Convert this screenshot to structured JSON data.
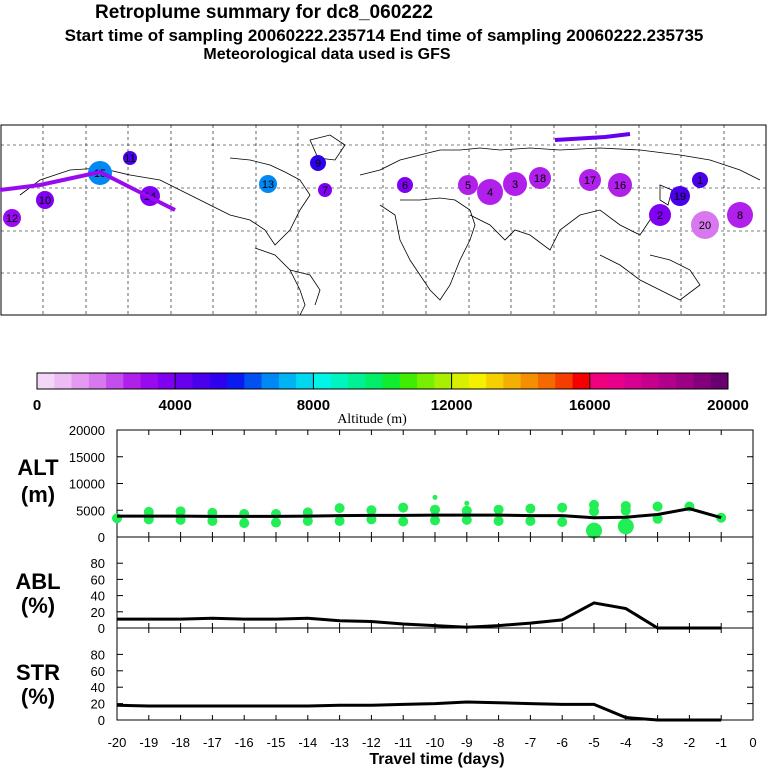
{
  "header": {
    "title": "Retroplume summary for dc8_060222",
    "sampling": "Start time of sampling 20060222.235714     End time of sampling 20060222.235735",
    "met": "Meteorological data used is GFS"
  },
  "colorbar": {
    "label": "Altitude (m)",
    "ticks": [
      "0",
      "4000",
      "8000",
      "12000",
      "16000",
      "20000"
    ],
    "colors": [
      "#f3d7f6",
      "#eebcf5",
      "#e39af0",
      "#d878ee",
      "#c44ded",
      "#b020ea",
      "#9a0af0",
      "#8000f2",
      "#6600ee",
      "#4a00ea",
      "#2f00f0",
      "#0a1af0",
      "#0050f2",
      "#0088f4",
      "#00b4f4",
      "#00d8f0",
      "#00f4e8",
      "#00f4c0",
      "#00f094",
      "#00ee68",
      "#10ec30",
      "#40ec00",
      "#78ee00",
      "#a8f000",
      "#d8f000",
      "#f4f000",
      "#f4d000",
      "#f4b000",
      "#f49000",
      "#f46a00",
      "#f43e00",
      "#f40000",
      "#f0007c",
      "#e8008c",
      "#d80090",
      "#c4008c",
      "#b0008c",
      "#9c0084",
      "#84007a",
      "#6a0070"
    ]
  },
  "map": {
    "labels": [
      "12",
      "10",
      "15",
      "14",
      "11",
      "13",
      "9",
      "7",
      "6",
      "5",
      "4",
      "3",
      "18",
      "17",
      "16",
      "19",
      "20",
      "8",
      "2",
      "1"
    ]
  },
  "chart_data": [
    {
      "type": "line",
      "panel": "ALT",
      "ylabel": "ALT\n(m)",
      "ylabel_top": "ALT",
      "ylabel_unit": "(m)",
      "ylim": [
        0,
        20000
      ],
      "yticks": [
        "0",
        "5000",
        "10000",
        "15000",
        "20000"
      ],
      "x": [
        -20,
        -19,
        -18,
        -17,
        -16,
        -15,
        -14,
        -13,
        -12,
        -11,
        -10,
        -9,
        -8,
        -7,
        -6,
        -5,
        -4,
        -3,
        -2,
        -1
      ],
      "values": [
        3900,
        3900,
        3900,
        3850,
        3850,
        3850,
        3900,
        4000,
        4050,
        4050,
        4100,
        4100,
        4100,
        4000,
        4000,
        3600,
        3700,
        4200,
        5300,
        3600
      ],
      "scatter": [
        {
          "x": -20,
          "y": 3500
        },
        {
          "x": -19,
          "y": 3300
        },
        {
          "x": -19,
          "y": 4700
        },
        {
          "x": -18,
          "y": 3200
        },
        {
          "x": -18,
          "y": 4800
        },
        {
          "x": -17,
          "y": 3000
        },
        {
          "x": -17,
          "y": 4500
        },
        {
          "x": -16,
          "y": 2600
        },
        {
          "x": -16,
          "y": 4300
        },
        {
          "x": -15,
          "y": 2700
        },
        {
          "x": -15,
          "y": 4300
        },
        {
          "x": -14,
          "y": 3000
        },
        {
          "x": -14,
          "y": 4600
        },
        {
          "x": -13,
          "y": 3000
        },
        {
          "x": -13,
          "y": 5400
        },
        {
          "x": -12,
          "y": 3300
        },
        {
          "x": -12,
          "y": 5000
        },
        {
          "x": -11,
          "y": 2900
        },
        {
          "x": -11,
          "y": 5500
        },
        {
          "x": -10,
          "y": 3100
        },
        {
          "x": -10,
          "y": 5100
        },
        {
          "x": -10,
          "y": 7400
        },
        {
          "x": -9,
          "y": 3200
        },
        {
          "x": -9,
          "y": 4900
        },
        {
          "x": -9,
          "y": 6300
        },
        {
          "x": -8,
          "y": 3000
        },
        {
          "x": -8,
          "y": 5100
        },
        {
          "x": -7,
          "y": 3000
        },
        {
          "x": -7,
          "y": 5300
        },
        {
          "x": -6,
          "y": 2800
        },
        {
          "x": -6,
          "y": 5500
        },
        {
          "x": -5,
          "y": 1200
        },
        {
          "x": -5,
          "y": 4800
        },
        {
          "x": -5,
          "y": 6000
        },
        {
          "x": -4,
          "y": 2000
        },
        {
          "x": -4,
          "y": 4900
        },
        {
          "x": -4,
          "y": 5800
        },
        {
          "x": -3,
          "y": 3400
        },
        {
          "x": -3,
          "y": 5700
        },
        {
          "x": -2,
          "y": 5700
        },
        {
          "x": -1,
          "y": 3600
        }
      ]
    },
    {
      "type": "line",
      "panel": "ABL",
      "ylabel_top": "ABL",
      "ylabel_unit": "(%)",
      "ylim": [
        0,
        100
      ],
      "yticks": [
        "0",
        "20",
        "40",
        "60",
        "80"
      ],
      "x": [
        -20,
        -19,
        -18,
        -17,
        -16,
        -15,
        -14,
        -13,
        -12,
        -11,
        -10,
        -9,
        -8,
        -7,
        -6,
        -5,
        -4,
        -3,
        -2,
        -1
      ],
      "values": [
        11,
        11,
        11,
        12,
        11,
        11,
        12,
        9,
        8,
        5,
        3,
        1,
        3,
        6,
        10,
        31,
        24,
        0,
        0,
        0
      ]
    },
    {
      "type": "line",
      "panel": "STR",
      "ylabel_top": "STR",
      "ylabel_unit": "(%)",
      "ylim": [
        0,
        100
      ],
      "yticks": [
        "0",
        "20",
        "40",
        "60",
        "80"
      ],
      "x": [
        -20,
        -19,
        -18,
        -17,
        -16,
        -15,
        -14,
        -13,
        -12,
        -11,
        -10,
        -9,
        -8,
        -7,
        -6,
        -5,
        -4,
        -3,
        -2,
        -1
      ],
      "values": [
        18,
        17,
        17,
        17,
        17,
        17,
        17,
        18,
        18,
        19,
        20,
        22,
        21,
        20,
        19,
        19,
        3,
        0,
        0,
        0
      ],
      "xlabel": "Travel time (days)",
      "xticks": [
        "-20",
        "-19",
        "-18",
        "-17",
        "-16",
        "-15",
        "-14",
        "-13",
        "-12",
        "-11",
        "-10",
        "-9",
        "-8",
        "-7",
        "-6",
        "-5",
        "-4",
        "-3",
        "-2",
        "-1",
        "0"
      ]
    }
  ]
}
